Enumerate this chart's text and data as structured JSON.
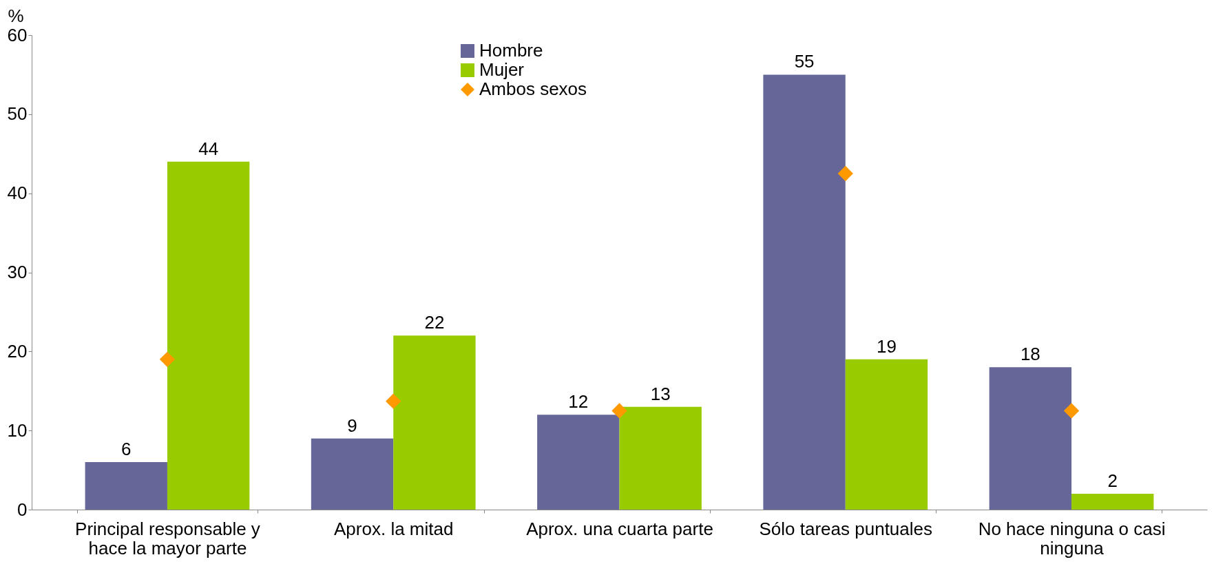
{
  "chart_data": {
    "type": "bar",
    "ylabel": "%",
    "categories": [
      "Principal responsable y hace la mayor parte",
      "Aprox. la mitad",
      "Aprox. una cuarta parte",
      "Sólo tareas puntuales",
      "No hace ninguna o casi ninguna"
    ],
    "series": [
      {
        "name": "Hombre",
        "color": "#666699",
        "values": [
          6,
          9,
          12,
          55,
          18
        ],
        "value_labels": [
          "6",
          "9",
          "12",
          "55",
          "18"
        ]
      },
      {
        "name": "Mujer",
        "color": "#99cc00",
        "values": [
          44,
          22,
          13,
          19,
          2
        ],
        "value_labels": [
          "44",
          "22",
          "13",
          "19",
          "2"
        ]
      },
      {
        "name": "Ambos sexos",
        "type": "scatter",
        "color": "#ff9900",
        "marker": "diamond",
        "values": [
          19,
          13.7,
          12.5,
          42.5,
          12.5
        ]
      }
    ],
    "ylim": [
      0,
      60
    ],
    "yticks": [
      0,
      10,
      20,
      30,
      40,
      50,
      60
    ],
    "grid": false,
    "legend": "top"
  }
}
